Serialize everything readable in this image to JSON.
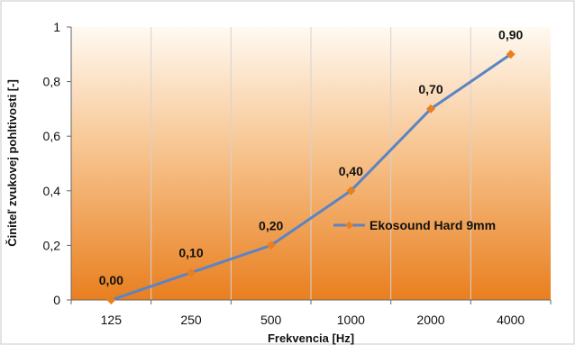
{
  "chart_data": {
    "type": "line",
    "categories": [
      "125",
      "250",
      "500",
      "1000",
      "2000",
      "4000"
    ],
    "series": [
      {
        "name": "Ekosound Hard 9mm",
        "values": [
          0.0,
          0.1,
          0.2,
          0.4,
          0.7,
          0.9
        ],
        "labels": [
          "0,00",
          "0,10",
          "0,20",
          "0,40",
          "0,70",
          "0,90"
        ],
        "color": "#5b84c4",
        "marker_color": "#e8801f"
      }
    ],
    "xlabel": "Frekvencia [Hz]",
    "ylabel": "Činiteľ zvukovej pohltivosti [-]",
    "ylim": [
      0,
      1
    ],
    "yticks": [
      0,
      0.2,
      0.4,
      0.6,
      0.8,
      1
    ],
    "ytick_labels": [
      "0",
      "0,2",
      "0,4",
      "0,6",
      "0,8",
      "1"
    ],
    "legend_position": "center-right",
    "background_gradient": [
      "#fffaf2",
      "#e97f1f"
    ]
  }
}
